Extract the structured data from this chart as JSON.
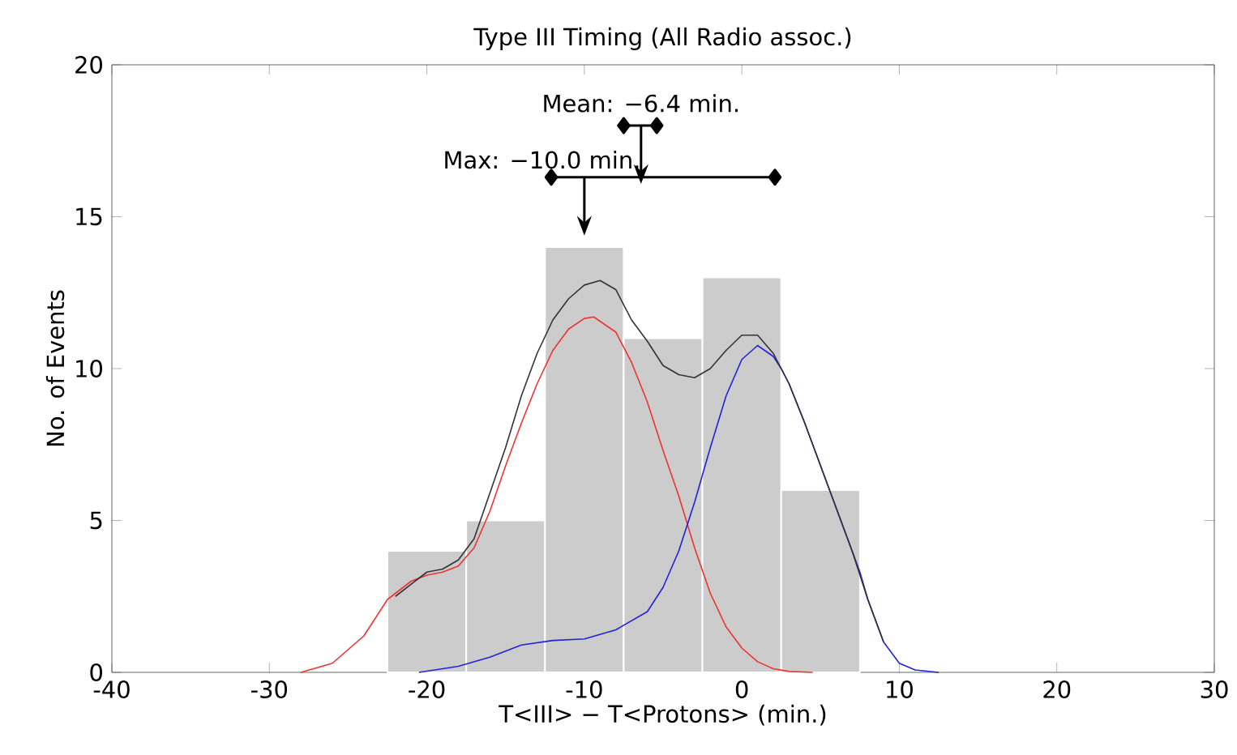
{
  "chart_data": {
    "type": "histogram",
    "title": "Type III Timing (All Radio assoc.)",
    "xlabel": "T<III> − T<Protons> (min.)",
    "ylabel": "No. of Events",
    "bins": [
      -22.5,
      -17.5,
      -12.5,
      -7.5,
      -2.5,
      2.5,
      7.5
    ],
    "values": [
      4,
      5,
      14,
      11,
      13,
      6
    ],
    "color": "#cccccc",
    "xlim": [
      -40,
      30
    ],
    "xticks": [
      -40,
      -30,
      -20,
      -10,
      0,
      10,
      20,
      30
    ],
    "ylim": [
      0,
      20
    ],
    "yticks": [
      0,
      5,
      10,
      15,
      20
    ],
    "series": [
      {
        "type": "line",
        "color": "#ee3333",
        "x": [
          -28,
          -26,
          -24,
          -22.5,
          -21,
          -20,
          -19,
          -18,
          -17,
          -16,
          -15,
          -14,
          -13,
          -12,
          -11,
          -10,
          -9.4,
          -8,
          -7,
          -6,
          -5,
          -4,
          -3,
          -2,
          -1,
          0,
          1,
          2,
          3,
          4.5
        ],
        "values": [
          0,
          0.3,
          1.2,
          2.4,
          3.0,
          3.2,
          3.3,
          3.5,
          4.1,
          5.3,
          6.8,
          8.2,
          9.5,
          10.6,
          11.3,
          11.65,
          11.7,
          11.2,
          10.2,
          8.9,
          7.3,
          5.8,
          4.1,
          2.6,
          1.5,
          0.8,
          0.35,
          0.12,
          0.03,
          0
        ]
      },
      {
        "type": "line",
        "color": "#2222dd",
        "x": [
          -20.5,
          -18,
          -16,
          -14,
          -12,
          -10,
          -8,
          -6,
          -5,
          -4,
          -3,
          -2,
          -1,
          0,
          1,
          2,
          2.5,
          3,
          4,
          5,
          6,
          7,
          7.5,
          8,
          9,
          10,
          11,
          12.5
        ],
        "values": [
          0,
          0.2,
          0.5,
          0.9,
          1.05,
          1.1,
          1.4,
          2.0,
          2.8,
          4.0,
          5.6,
          7.4,
          9.1,
          10.3,
          10.76,
          10.4,
          10.0,
          9.5,
          8.2,
          6.8,
          5.4,
          4.0,
          3.3,
          2.4,
          1.0,
          0.3,
          0.08,
          0
        ]
      },
      {
        "type": "line",
        "color": "#333333",
        "x": [
          -22,
          -20,
          -19,
          -18,
          -17,
          -16,
          -15,
          -14,
          -13,
          -12,
          -11,
          -10,
          -9,
          -8,
          -7,
          -6,
          -5,
          -4,
          -3,
          -2,
          -1,
          0,
          1,
          2,
          3,
          4,
          5,
          6,
          7,
          8,
          9
        ],
        "values": [
          2.5,
          3.3,
          3.4,
          3.7,
          4.4,
          5.9,
          7.4,
          9.1,
          10.5,
          11.6,
          12.3,
          12.75,
          12.9,
          12.6,
          11.6,
          10.9,
          10.1,
          9.8,
          9.7,
          10.0,
          10.6,
          11.1,
          11.1,
          10.5,
          9.5,
          8.2,
          6.8,
          5.4,
          4.0,
          2.4,
          1.0
        ]
      },
      {
        "type": "line",
        "color": "#000000",
        "marker": "diamond",
        "x": [
          -12.1,
          2.1
        ],
        "values": [
          16.3,
          16.3
        ]
      },
      {
        "type": "line",
        "color": "#000000",
        "marker": "diamond",
        "x": [
          -7.5,
          -5.4
        ],
        "values": [
          18,
          18
        ]
      }
    ],
    "annotations": [
      {
        "text": "Max: −10.0 min.",
        "x": -10,
        "y": 16.3
      },
      {
        "text": "Mean: −6.4 min.",
        "x": -6.4,
        "y": 18
      }
    ]
  }
}
